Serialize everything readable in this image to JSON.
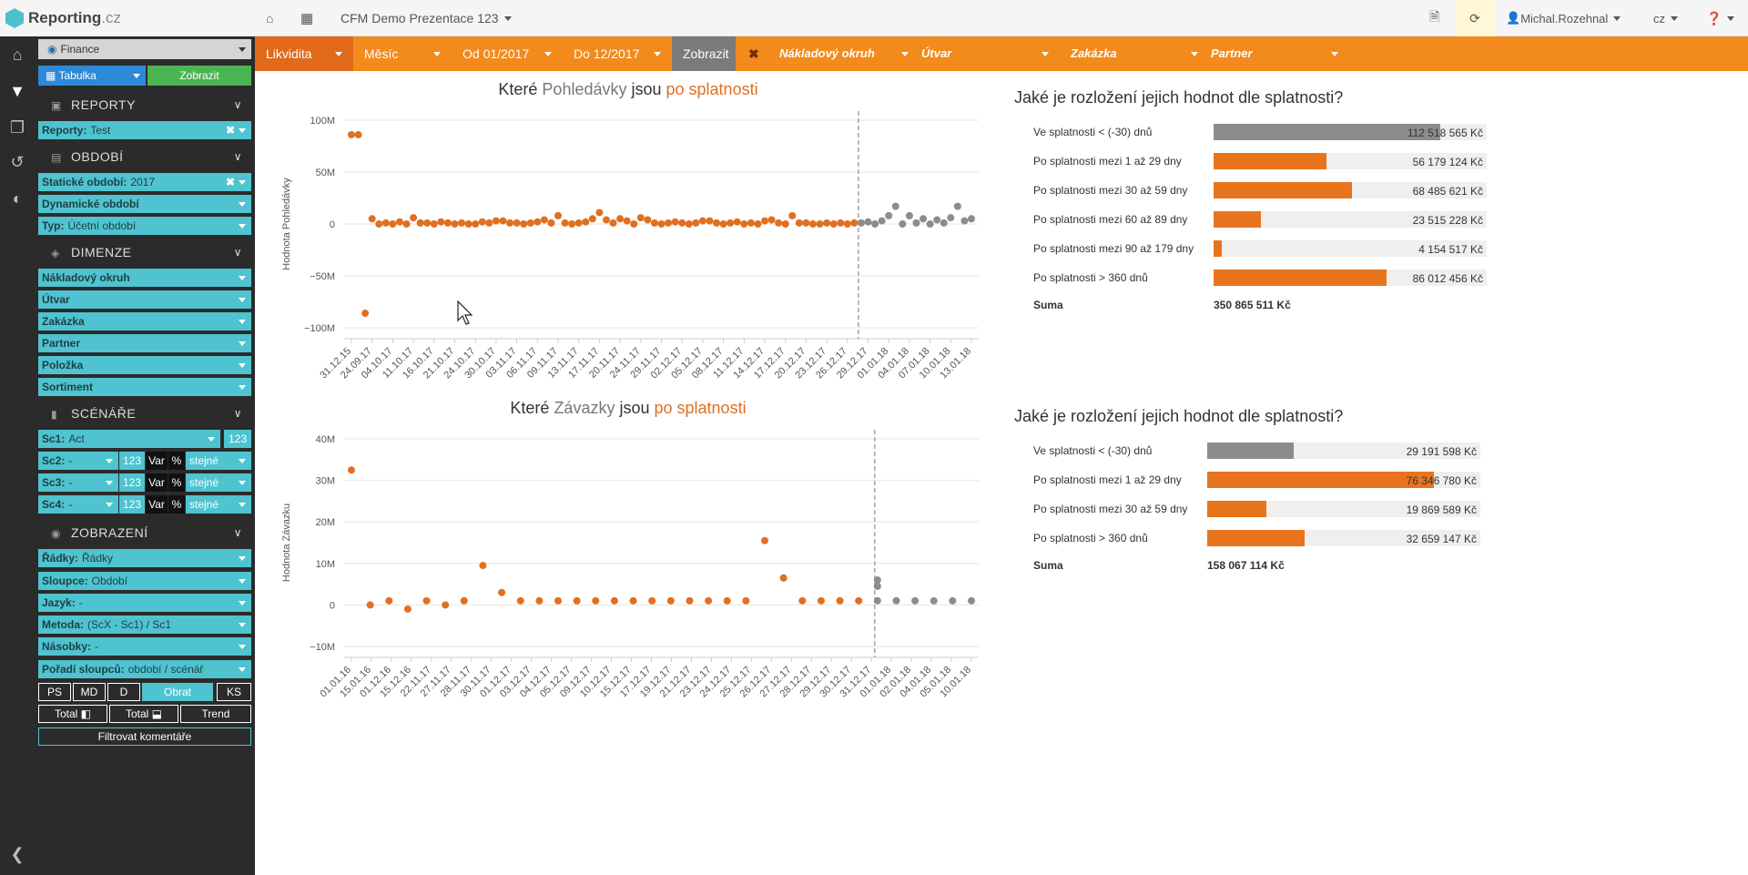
{
  "app": {
    "brand_main": "Reporting",
    "brand_sub": ".cz",
    "project": "CFM Demo Prezentace 123",
    "user": "Michal.Rozehnal",
    "lang": "cz"
  },
  "sidebar": {
    "module": "Finance",
    "view_label": "Tabulka",
    "show_label": "Zobrazit",
    "sections": {
      "reports": "REPORTY",
      "period": "OBDOBÍ",
      "dimension": "DIMENZE",
      "scenarios": "SCÉNÁŘE",
      "display": "ZOBRAZENÍ"
    },
    "reports_row": {
      "label": "Reporty:",
      "value": "Test"
    },
    "static_period": {
      "label": "Statické období:",
      "value": "2017"
    },
    "dynamic_period": {
      "label": "Dynamické období"
    },
    "type_row": {
      "label": "Typ:",
      "value": "Účetní období"
    },
    "dimensions": [
      "Nákladový okruh",
      "Útvar",
      "Zakázka",
      "Partner",
      "Položka",
      "Sortiment"
    ],
    "sc1": {
      "label": "Sc1:",
      "value": "Act",
      "badge": "123"
    },
    "sc_rows": [
      {
        "label": "Sc2:",
        "value": "-",
        "n": "123",
        "var": "Var",
        "pct": "%",
        "same": "stejné"
      },
      {
        "label": "Sc3:",
        "value": "-",
        "n": "123",
        "var": "Var",
        "pct": "%",
        "same": "stejné"
      },
      {
        "label": "Sc4:",
        "value": "-",
        "n": "123",
        "var": "Var",
        "pct": "%",
        "same": "stejné"
      }
    ],
    "display_rows": [
      {
        "label": "Řádky:",
        "value": "Řádky"
      },
      {
        "label": "Sloupce:",
        "value": "Období"
      },
      {
        "label": "Jazyk:",
        "value": "-"
      },
      {
        "label": "Metoda:",
        "value": "(ScX - Sc1) / Sc1"
      },
      {
        "label": "Násobky:",
        "value": "-"
      },
      {
        "label": "Pořadí sloupců:",
        "value": "období / scénář"
      }
    ],
    "buttons_row1": [
      "PS",
      "MD",
      "D",
      "Obrat",
      "KS"
    ],
    "buttons_row2": [
      "Total ◧",
      "Total ⬓",
      "Trend"
    ],
    "filter_comments": "Filtrovat komentáře"
  },
  "filters": {
    "likvidita": "Likvidita",
    "mesic": "Měsíc",
    "od": "Od 01/2017",
    "do": "Do 12/2017",
    "zobrazit": "Zobrazit",
    "naklady": "Nákladový okruh",
    "utvar": "Útvar",
    "zakazka": "Zakázka",
    "partner": "Partner"
  },
  "colors": {
    "orange": "#e07020",
    "gray": "#8c8c8c",
    "teal": "#4fc3cf",
    "bar_orange": "#f28a1c"
  },
  "chart1": {
    "title_pre": "Které ",
    "title_mid": "Pohledávky",
    "title_mid2": " jsou ",
    "title_post": "po splatnosti",
    "ylabel": "Hodnota Pohledávky",
    "yticks": [
      "100M",
      "50M",
      "0",
      "−50M",
      "−100M"
    ],
    "xticks": [
      "31.12.15",
      "24.09.17",
      "04.10.17",
      "11.10.17",
      "16.10.17",
      "21.10.17",
      "24.10.17",
      "30.10.17",
      "03.11.17",
      "06.11.17",
      "09.11.17",
      "13.11.17",
      "17.11.17",
      "20.11.17",
      "24.11.17",
      "29.11.17",
      "02.12.17",
      "05.12.17",
      "08.12.17",
      "11.12.17",
      "14.12.17",
      "17.12.17",
      "20.12.17",
      "23.12.17",
      "26.12.17",
      "29.12.17",
      "01.01.18",
      "04.01.18",
      "07.01.18",
      "10.01.18",
      "13.01.18"
    ]
  },
  "chart2": {
    "title_pre": "Které ",
    "title_mid": "Závazky",
    "title_mid2": " jsou ",
    "title_post": "po splatnosti",
    "ylabel": "Hodnota Závazku",
    "yticks": [
      "40M",
      "30M",
      "20M",
      "10M",
      "0",
      "−10M"
    ],
    "xticks": [
      "01.01.16",
      "15.01.16",
      "01.12.16",
      "15.12.16",
      "22.11.17",
      "27.11.17",
      "28.11.17",
      "30.11.17",
      "01.12.17",
      "03.12.17",
      "04.12.17",
      "05.12.17",
      "09.12.17",
      "10.12.17",
      "15.12.17",
      "17.12.17",
      "19.12.17",
      "21.12.17",
      "23.12.17",
      "24.12.17",
      "25.12.17",
      "26.12.17",
      "27.12.17",
      "28.12.17",
      "29.12.17",
      "30.12.17",
      "31.12.17",
      "01.01.18",
      "02.01.18",
      "04.01.18",
      "05.01.18",
      "10.01.18"
    ]
  },
  "dist1": {
    "title": "Jaké je rozložení jejich hodnot dle splatnosti?",
    "rows": [
      {
        "label": "Ve splatnosti < (-30) dnů",
        "amount": "112 518 565 Kč",
        "value": 112518565,
        "color": "gray"
      },
      {
        "label": "Po splatnosti mezi 1 až 29 dny",
        "amount": "56 179 124 Kč",
        "value": 56179124,
        "color": "orange"
      },
      {
        "label": "Po splatnosti mezi 30 až 59 dny",
        "amount": "68 485 621 Kč",
        "value": 68485621,
        "color": "orange"
      },
      {
        "label": "Po splatnosti mezi 60 až 89 dny",
        "amount": "23 515 228 Kč",
        "value": 23515228,
        "color": "orange"
      },
      {
        "label": "Po splatnosti mezi 90 až 179 dny",
        "amount": "4 154 517 Kč",
        "value": 4154517,
        "color": "orange"
      },
      {
        "label": "Po splatnosti > 360 dnů",
        "amount": "86 012 456 Kč",
        "value": 86012456,
        "color": "orange"
      }
    ],
    "sum_label": "Suma",
    "sum_value": "350 865 511 Kč"
  },
  "dist2": {
    "title": "Jaké je rozložení jejich hodnot dle splatnosti?",
    "rows": [
      {
        "label": "Ve splatnosti < (-30) dnů",
        "amount": "29 191 598 Kč",
        "value": 29191598,
        "color": "gray"
      },
      {
        "label": "Po splatnosti mezi 1 až 29 dny",
        "amount": "76 346 780 Kč",
        "value": 76346780,
        "color": "orange"
      },
      {
        "label": "Po splatnosti mezi 30 až 59 dny",
        "amount": "19 869 589 Kč",
        "value": 19869589,
        "color": "orange"
      },
      {
        "label": "Po splatnosti > 360 dnů",
        "amount": "32 659 147 Kč",
        "value": 32659147,
        "color": "orange"
      }
    ],
    "sum_label": "Suma",
    "sum_value": "158 067 114 Kč"
  },
  "chart_data": [
    {
      "type": "scatter",
      "ylabel": "Hodnota Pohledávky",
      "ylim": [
        -100,
        100
      ],
      "yunit": "M Kč",
      "series": [
        {
          "color": "orange",
          "points": [
            [
              0,
              86
            ],
            [
              1,
              86
            ],
            [
              2,
              -86
            ],
            [
              3,
              5
            ],
            [
              4,
              0
            ],
            [
              5,
              1
            ],
            [
              6,
              0
            ],
            [
              7,
              2
            ],
            [
              8,
              0
            ],
            [
              9,
              6
            ],
            [
              10,
              1
            ],
            [
              11,
              1
            ],
            [
              12,
              0
            ],
            [
              13,
              2
            ],
            [
              14,
              1
            ],
            [
              15,
              0
            ],
            [
              16,
              1
            ],
            [
              17,
              0
            ],
            [
              18,
              0
            ],
            [
              19,
              2
            ],
            [
              20,
              1
            ],
            [
              21,
              3
            ],
            [
              22,
              3
            ],
            [
              23,
              1
            ],
            [
              24,
              1
            ],
            [
              25,
              0
            ],
            [
              26,
              1
            ],
            [
              27,
              2
            ],
            [
              28,
              4
            ],
            [
              29,
              1
            ],
            [
              30,
              8
            ],
            [
              31,
              1
            ],
            [
              32,
              0
            ],
            [
              33,
              1
            ],
            [
              34,
              2
            ],
            [
              35,
              5
            ],
            [
              36,
              11
            ],
            [
              37,
              4
            ],
            [
              38,
              1
            ],
            [
              39,
              5
            ],
            [
              40,
              3
            ],
            [
              41,
              0
            ],
            [
              42,
              6
            ],
            [
              43,
              4
            ],
            [
              44,
              1
            ],
            [
              45,
              0
            ],
            [
              46,
              1
            ],
            [
              47,
              2
            ],
            [
              48,
              1
            ],
            [
              49,
              0
            ],
            [
              50,
              1
            ],
            [
              51,
              3
            ],
            [
              52,
              3
            ],
            [
              53,
              1
            ],
            [
              54,
              0
            ],
            [
              55,
              1
            ],
            [
              56,
              2
            ],
            [
              57,
              0
            ],
            [
              58,
              1
            ],
            [
              59,
              0
            ],
            [
              60,
              3
            ],
            [
              61,
              4
            ],
            [
              62,
              1
            ],
            [
              63,
              0
            ],
            [
              64,
              8
            ],
            [
              65,
              1
            ],
            [
              66,
              1
            ],
            [
              67,
              0
            ],
            [
              68,
              0
            ],
            [
              69,
              1
            ],
            [
              70,
              0
            ],
            [
              71,
              1
            ],
            [
              72,
              0
            ],
            [
              73,
              1
            ]
          ]
        },
        {
          "color": "gray",
          "points": [
            [
              74,
              1
            ],
            [
              75,
              2
            ],
            [
              76,
              0
            ],
            [
              77,
              3
            ],
            [
              78,
              8
            ],
            [
              79,
              17
            ],
            [
              80,
              0
            ],
            [
              81,
              8
            ],
            [
              82,
              1
            ],
            [
              83,
              5
            ],
            [
              84,
              0
            ],
            [
              85,
              4
            ],
            [
              86,
              1
            ],
            [
              87,
              6
            ],
            [
              88,
              17
            ],
            [
              89,
              3
            ],
            [
              90,
              5
            ]
          ]
        }
      ]
    },
    {
      "type": "scatter",
      "ylabel": "Hodnota Závazku",
      "ylim": [
        -10,
        40
      ],
      "yunit": "M Kč",
      "series": [
        {
          "color": "orange",
          "points": [
            [
              0,
              32.5
            ],
            [
              1,
              0
            ],
            [
              2,
              1
            ],
            [
              3,
              -1
            ],
            [
              4,
              1
            ],
            [
              5,
              0
            ],
            [
              6,
              1
            ],
            [
              7,
              9.5
            ],
            [
              8,
              3
            ],
            [
              9,
              1
            ],
            [
              10,
              1
            ],
            [
              11,
              1
            ],
            [
              12,
              1
            ],
            [
              13,
              1
            ],
            [
              14,
              1
            ],
            [
              15,
              1
            ],
            [
              16,
              1
            ],
            [
              17,
              1
            ],
            [
              18,
              1
            ],
            [
              19,
              1
            ],
            [
              20,
              1
            ],
            [
              21,
              1
            ],
            [
              22,
              15.5
            ],
            [
              23,
              6.5
            ],
            [
              24,
              1
            ],
            [
              25,
              1
            ],
            [
              26,
              1
            ],
            [
              27,
              1
            ]
          ]
        },
        {
          "color": "gray",
          "points": [
            [
              28,
              6
            ],
            [
              28,
              4.5
            ],
            [
              28,
              1
            ],
            [
              29,
              1
            ],
            [
              30,
              1
            ],
            [
              31,
              1
            ],
            [
              32,
              1
            ],
            [
              33,
              1
            ]
          ]
        }
      ]
    }
  ]
}
